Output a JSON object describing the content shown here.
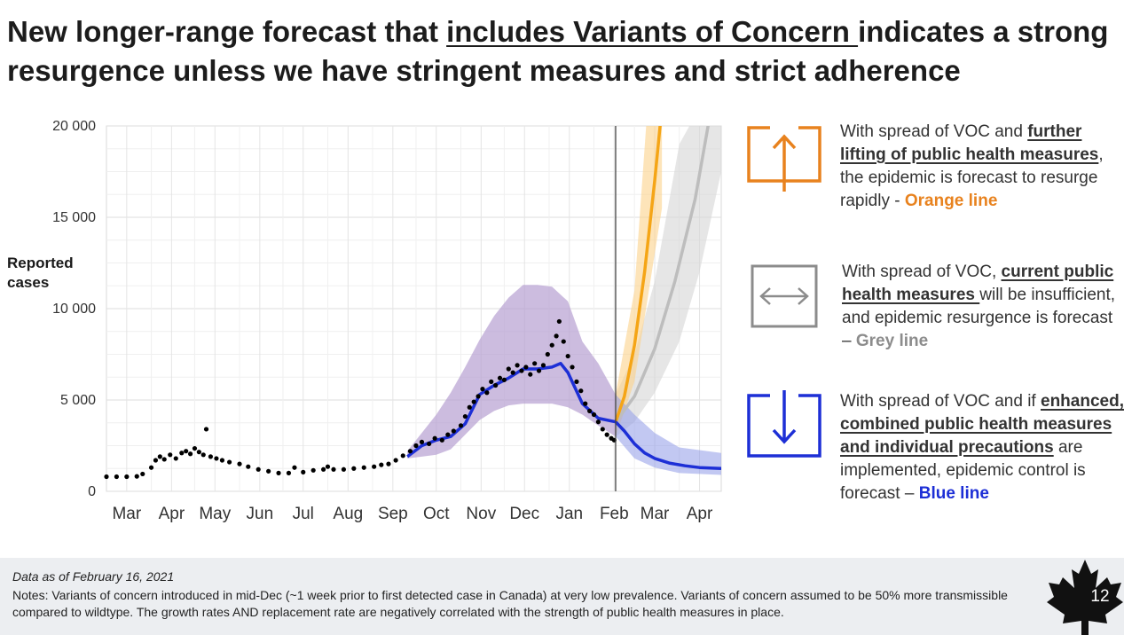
{
  "title": {
    "part1": "New longer-range forecast that ",
    "underlined": "includes Variants of Concern ",
    "part2": "indicates a strong resurgence unless we have stringent measures and strict adherence"
  },
  "legend": {
    "orange": {
      "icon": "arrow-up-box-icon",
      "color": "#e8821e",
      "line1": "With spread of VOC and ",
      "bold": "further lifting of public health measures",
      "line2": ", the epidemic is forecast to resurge rapidly - ",
      "label": "Orange line"
    },
    "grey": {
      "icon": "arrow-left-right-box-icon",
      "color": "#8c8c8c",
      "line1": "With spread of VOC, ",
      "bold": "current public health measures ",
      "line2": "will be insufficient, and epidemic resurgence is forecast – ",
      "label": "Grey line"
    },
    "blue": {
      "icon": "arrow-down-box-icon",
      "color": "#1d2fd6",
      "line1": "With spread of VOC and if ",
      "bold": "enhanced, combined public health measures and individual precautions",
      "line2": " are implemented, epidemic control is forecast – ",
      "label": "Blue line"
    }
  },
  "footer": {
    "date": "Data as of February 16, 2021",
    "notes": "Notes: Variants of concern introduced in mid-Dec (~1 week prior to first detected case in Canada) at very low prevalence. Variants of concern assumed to be 50% more transmissible compared to wildtype. The growth rates AND replacement rate are negatively correlated with the strength of public health measures in place.",
    "page_number": "12"
  },
  "chart_data": {
    "type": "line",
    "ylabel": "Reported cases",
    "ylim": [
      0,
      20000
    ],
    "yticks": [
      0,
      5000,
      10000,
      15000,
      20000
    ],
    "ytick_labels": [
      "0",
      "5 000",
      "10 000",
      "15 000",
      "20 000"
    ],
    "xlim": [
      "2020-03-01",
      "2021-04-30"
    ],
    "xtick_labels": [
      "Mar",
      "Apr",
      "May",
      "Jun",
      "Jul",
      "Aug",
      "Sep",
      "Oct",
      "Nov",
      "Dec",
      "Jan",
      "Feb",
      "Mar",
      "Apr"
    ],
    "xtick_dates": [
      "2020-03-15",
      "2020-04-15",
      "2020-05-15",
      "2020-06-15",
      "2020-07-15",
      "2020-08-15",
      "2020-09-15",
      "2020-10-15",
      "2020-11-15",
      "2020-12-15",
      "2021-01-15",
      "2021-02-15",
      "2021-03-15",
      "2021-04-15"
    ],
    "forecast_start": "2021-02-16",
    "grid": true,
    "colors": {
      "observed": "#000000",
      "fit_band": "#b79fd1",
      "blue": "#1d2fd6",
      "orange": "#f5a516",
      "grey": "#bdbdbd"
    },
    "observed_points": [
      [
        "2020-03-01",
        800
      ],
      [
        "2020-03-08",
        800
      ],
      [
        "2020-03-15",
        800
      ],
      [
        "2020-03-22",
        820
      ],
      [
        "2020-03-26",
        950
      ],
      [
        "2020-04-01",
        1300
      ],
      [
        "2020-04-04",
        1700
      ],
      [
        "2020-04-07",
        1900
      ],
      [
        "2020-04-10",
        1750
      ],
      [
        "2020-04-14",
        2000
      ],
      [
        "2020-04-18",
        1800
      ],
      [
        "2020-04-22",
        2100
      ],
      [
        "2020-04-25",
        2200
      ],
      [
        "2020-04-28",
        2050
      ],
      [
        "2020-05-01",
        2350
      ],
      [
        "2020-05-04",
        2150
      ],
      [
        "2020-05-07",
        2000
      ],
      [
        "2020-05-09",
        3400
      ],
      [
        "2020-05-12",
        1900
      ],
      [
        "2020-05-16",
        1800
      ],
      [
        "2020-05-20",
        1700
      ],
      [
        "2020-05-25",
        1600
      ],
      [
        "2020-06-01",
        1500
      ],
      [
        "2020-06-07",
        1350
      ],
      [
        "2020-06-14",
        1200
      ],
      [
        "2020-06-21",
        1100
      ],
      [
        "2020-06-28",
        1000
      ],
      [
        "2020-07-05",
        1000
      ],
      [
        "2020-07-09",
        1300
      ],
      [
        "2020-07-15",
        1050
      ],
      [
        "2020-07-22",
        1150
      ],
      [
        "2020-07-29",
        1200
      ],
      [
        "2020-08-01",
        1350
      ],
      [
        "2020-08-05",
        1200
      ],
      [
        "2020-08-12",
        1200
      ],
      [
        "2020-08-19",
        1250
      ],
      [
        "2020-08-26",
        1300
      ],
      [
        "2020-09-02",
        1350
      ],
      [
        "2020-09-07",
        1450
      ],
      [
        "2020-09-12",
        1500
      ],
      [
        "2020-09-17",
        1700
      ],
      [
        "2020-09-22",
        1950
      ],
      [
        "2020-09-27",
        2200
      ],
      [
        "2020-10-01",
        2500
      ],
      [
        "2020-10-05",
        2700
      ],
      [
        "2020-10-10",
        2600
      ],
      [
        "2020-10-14",
        2900
      ],
      [
        "2020-10-19",
        2800
      ],
      [
        "2020-10-23",
        3100
      ],
      [
        "2020-10-27",
        3300
      ],
      [
        "2020-11-01",
        3600
      ],
      [
        "2020-11-04",
        4100
      ],
      [
        "2020-11-07",
        4600
      ],
      [
        "2020-11-10",
        4900
      ],
      [
        "2020-11-13",
        5200
      ],
      [
        "2020-11-16",
        5600
      ],
      [
        "2020-11-19",
        5400
      ],
      [
        "2020-11-22",
        6000
      ],
      [
        "2020-11-25",
        5800
      ],
      [
        "2020-11-28",
        6200
      ],
      [
        "2020-12-01",
        6100
      ],
      [
        "2020-12-04",
        6700
      ],
      [
        "2020-12-07",
        6500
      ],
      [
        "2020-12-10",
        6900
      ],
      [
        "2020-12-13",
        6600
      ],
      [
        "2020-12-16",
        6800
      ],
      [
        "2020-12-19",
        6400
      ],
      [
        "2020-12-22",
        7000
      ],
      [
        "2020-12-25",
        6600
      ],
      [
        "2020-12-28",
        6900
      ],
      [
        "2020-12-31",
        7500
      ],
      [
        "2021-01-03",
        8000
      ],
      [
        "2021-01-06",
        8500
      ],
      [
        "2021-01-08",
        9300
      ],
      [
        "2021-01-11",
        8200
      ],
      [
        "2021-01-14",
        7400
      ],
      [
        "2021-01-17",
        6800
      ],
      [
        "2021-01-20",
        6000
      ],
      [
        "2021-01-23",
        5500
      ],
      [
        "2021-01-26",
        4800
      ],
      [
        "2021-01-29",
        4400
      ],
      [
        "2021-02-01",
        4200
      ],
      [
        "2021-02-04",
        3800
      ],
      [
        "2021-02-07",
        3400
      ],
      [
        "2021-02-10",
        3100
      ],
      [
        "2021-02-13",
        2900
      ],
      [
        "2021-02-15",
        2800
      ]
    ],
    "series": [
      {
        "key": "fit",
        "values": [
          [
            "2020-09-25",
            1900
          ],
          [
            "2020-10-05",
            2500
          ],
          [
            "2020-10-15",
            2800
          ],
          [
            "2020-10-25",
            3000
          ],
          [
            "2020-11-04",
            3700
          ],
          [
            "2020-11-14",
            5300
          ],
          [
            "2020-11-24",
            5800
          ],
          [
            "2020-12-04",
            6200
          ],
          [
            "2020-12-14",
            6700
          ],
          [
            "2020-12-24",
            6700
          ],
          [
            "2021-01-03",
            6800
          ],
          [
            "2021-01-09",
            7000
          ],
          [
            "2021-01-14",
            6500
          ],
          [
            "2021-01-24",
            4800
          ],
          [
            "2021-02-04",
            4000
          ],
          [
            "2021-02-16",
            3800
          ]
        ]
      },
      {
        "key": "blue",
        "values": [
          [
            "2021-02-16",
            3800
          ],
          [
            "2021-02-22",
            3300
          ],
          [
            "2021-03-01",
            2600
          ],
          [
            "2021-03-08",
            2100
          ],
          [
            "2021-03-15",
            1800
          ],
          [
            "2021-03-25",
            1550
          ],
          [
            "2021-04-05",
            1400
          ],
          [
            "2021-04-15",
            1300
          ],
          [
            "2021-04-30",
            1250
          ]
        ]
      },
      {
        "key": "orange",
        "values": [
          [
            "2021-02-16",
            3800
          ],
          [
            "2021-02-22",
            5200
          ],
          [
            "2021-03-01",
            8000
          ],
          [
            "2021-03-08",
            12000
          ],
          [
            "2021-03-15",
            17000
          ],
          [
            "2021-03-20",
            21000
          ]
        ]
      },
      {
        "key": "grey",
        "values": [
          [
            "2021-02-16",
            3800
          ],
          [
            "2021-03-01",
            5200
          ],
          [
            "2021-03-15",
            7800
          ],
          [
            "2021-03-29",
            11500
          ],
          [
            "2021-04-12",
            16000
          ],
          [
            "2021-04-22",
            20500
          ]
        ]
      }
    ],
    "bands": [
      {
        "key": "fit_band",
        "values": [
          [
            "2020-09-25",
            1800,
            2200
          ],
          [
            "2020-10-05",
            1900,
            3200
          ],
          [
            "2020-10-15",
            2000,
            4200
          ],
          [
            "2020-10-25",
            2300,
            5400
          ],
          [
            "2020-11-04",
            3100,
            6800
          ],
          [
            "2020-11-14",
            3900,
            8300
          ],
          [
            "2020-11-24",
            4400,
            9600
          ],
          [
            "2020-12-04",
            4700,
            10600
          ],
          [
            "2020-12-14",
            4800,
            11300
          ],
          [
            "2020-12-24",
            4800,
            11300
          ],
          [
            "2021-01-03",
            4800,
            11200
          ],
          [
            "2021-01-14",
            4600,
            10400
          ],
          [
            "2021-01-24",
            4200,
            8200
          ],
          [
            "2021-02-04",
            3600,
            7000
          ],
          [
            "2021-02-16",
            3000,
            5300
          ]
        ]
      },
      {
        "key": "blue",
        "values": [
          [
            "2021-02-16",
            3000,
            5300
          ],
          [
            "2021-03-01",
            1800,
            4200
          ],
          [
            "2021-03-15",
            1300,
            3200
          ],
          [
            "2021-04-01",
            1000,
            2400
          ],
          [
            "2021-04-30",
            900,
            2100
          ]
        ]
      },
      {
        "key": "orange",
        "values": [
          [
            "2021-02-16",
            3000,
            5300
          ],
          [
            "2021-03-01",
            6000,
            11000
          ],
          [
            "2021-03-10",
            10500,
            21000
          ],
          [
            "2021-03-20",
            15500,
            21000
          ]
        ]
      },
      {
        "key": "grey",
        "values": [
          [
            "2021-02-16",
            3000,
            5300
          ],
          [
            "2021-03-01",
            3800,
            7500
          ],
          [
            "2021-03-15",
            5400,
            11500
          ],
          [
            "2021-04-01",
            8200,
            19000
          ],
          [
            "2021-04-15",
            12000,
            21000
          ],
          [
            "2021-04-30",
            17500,
            21000
          ]
        ]
      }
    ]
  }
}
